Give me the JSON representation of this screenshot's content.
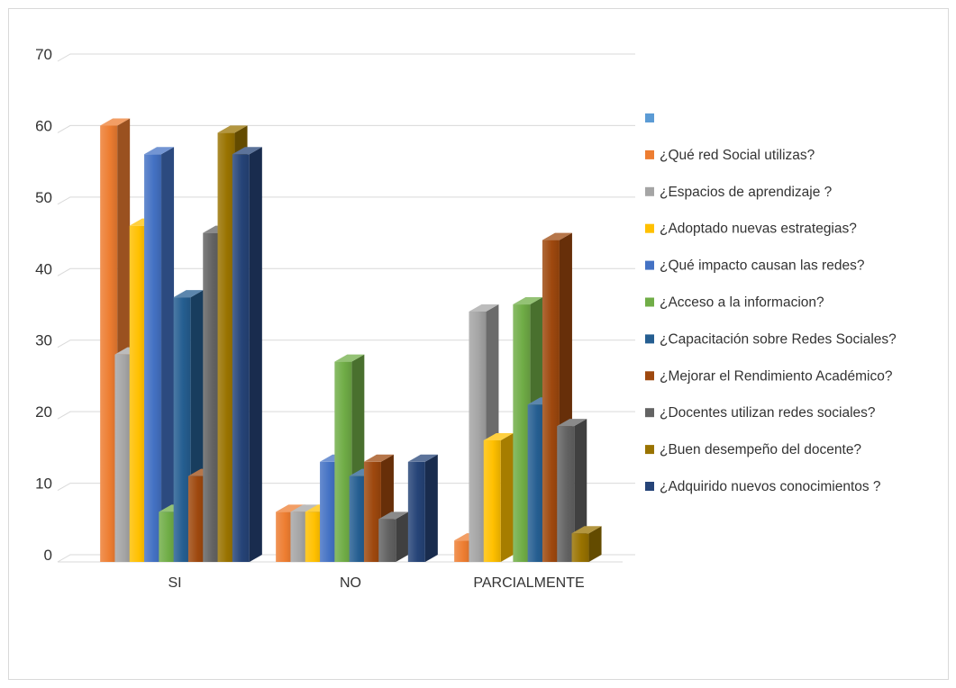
{
  "chart_data": {
    "type": "bar",
    "style": "3d-clustered-column",
    "categories": [
      "SI",
      "NO",
      "PARCIALMENTE"
    ],
    "ylim": [
      0,
      70
    ],
    "yticks": [
      0,
      10,
      20,
      30,
      40,
      50,
      60,
      70
    ],
    "grid": true,
    "legend_position": "right",
    "series": [
      {
        "name": "¿Qué red Social utilizas?",
        "color": "#ed7d31",
        "values": [
          61,
          7,
          3
        ]
      },
      {
        "name": "¿Espacios de aprendizaje ?",
        "color": "#a5a5a5",
        "values": [
          29,
          7,
          35
        ]
      },
      {
        "name": "¿Adoptado nuevas estrategias?",
        "color": "#ffc000",
        "values": [
          47,
          7,
          17
        ]
      },
      {
        "name": "¿Qué impacto causan las redes?",
        "color": "#4472c4",
        "values": [
          57,
          14,
          0
        ]
      },
      {
        "name": "¿Acceso a la informacion?",
        "color": "#70ad47",
        "values": [
          7,
          28,
          36
        ]
      },
      {
        "name": "¿Capacitación sobre Redes Sociales?",
        "color": "#255e91",
        "values": [
          37,
          12,
          22
        ]
      },
      {
        "name": "¿Mejorar  el Rendimiento Académico?",
        "color": "#9e480e",
        "values": [
          12,
          14,
          45
        ]
      },
      {
        "name": "¿Docentes utilizan redes sociales?",
        "color": "#636363",
        "values": [
          46,
          6,
          19
        ]
      },
      {
        "name": "¿Buen desempeño del docente?",
        "color": "#997300",
        "values": [
          60,
          0,
          4
        ]
      },
      {
        "name": "¿Adquirido nuevos conocimientos ?",
        "color": "#264478",
        "values": [
          57,
          14,
          0
        ]
      }
    ],
    "legend": [
      {
        "label": "",
        "color": "#5b9bd5"
      },
      {
        "label": "¿Qué red Social utilizas?",
        "color": "#ed7d31"
      },
      {
        "label": "¿Espacios de aprendizaje ?",
        "color": "#a5a5a5"
      },
      {
        "label": "¿Adoptado nuevas estrategias?",
        "color": "#ffc000"
      },
      {
        "label": "¿Qué impacto causan las redes?",
        "color": "#4472c4"
      },
      {
        "label": "¿Acceso a la informacion?",
        "color": "#70ad47"
      },
      {
        "label": "¿Capacitación sobre Redes Sociales?",
        "color": "#255e91"
      },
      {
        "label": "¿Mejorar  el Rendimiento Académico?",
        "color": "#9e480e"
      },
      {
        "label": "¿Docentes utilizan redes sociales?",
        "color": "#636363"
      },
      {
        "label": "¿Buen desempeño del docente?",
        "color": "#997300"
      },
      {
        "label": "¿Adquirido nuevos conocimientos ?",
        "color": "#264478"
      }
    ]
  }
}
